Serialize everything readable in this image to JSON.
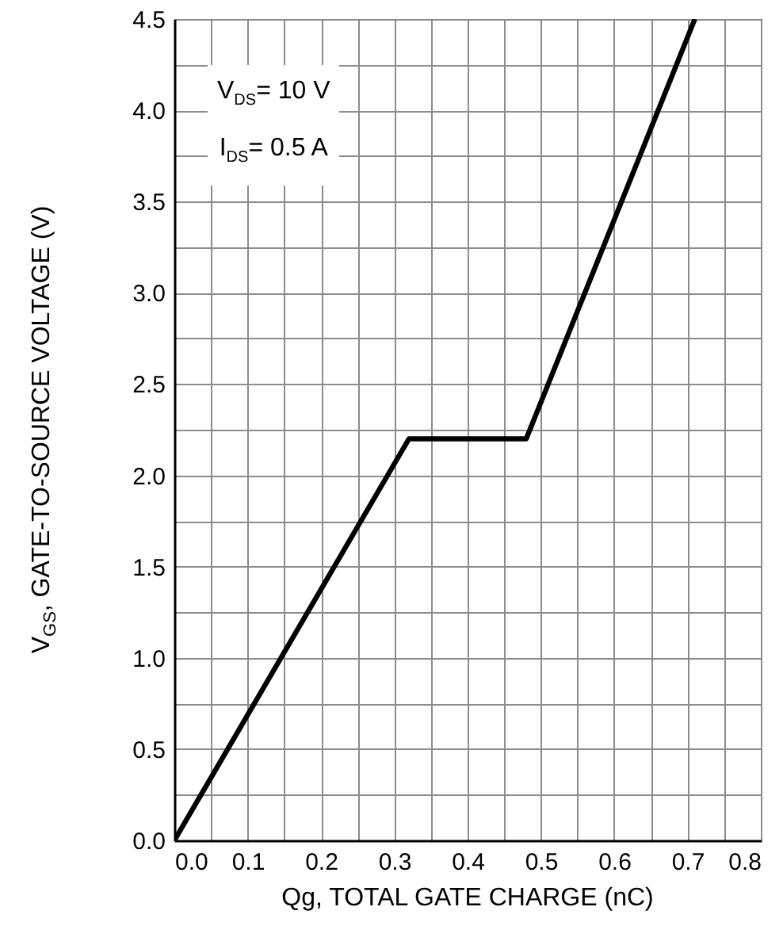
{
  "chart_data": {
    "type": "line",
    "xlabel": "Qg, TOTAL GATE CHARGE (nC)",
    "ylabel": "V$_{GS}$, GATE-TO-SOURCE VOLTAGE (V)",
    "annotations": [
      "V$_{DS}$= 10 V",
      "I$_{DS}$= 0.5 A"
    ],
    "x": [
      0,
      0.32,
      0.48,
      0.71
    ],
    "series": [
      {
        "color": "#000000",
        "values": [
          0,
          2.2,
          2.2,
          4.5
        ]
      }
    ],
    "xlim": [
      0,
      0.8
    ],
    "xticks": [
      {
        "value": 0,
        "label": "0.0"
      },
      {
        "value": 0.05,
        "label": null
      },
      {
        "value": 0.1,
        "label": "0.1"
      },
      {
        "value": 0.15,
        "label": null
      },
      {
        "value": 0.2,
        "label": "0.2"
      },
      {
        "value": 0.25,
        "label": null
      },
      {
        "value": 0.3,
        "label": "0.3"
      },
      {
        "value": 0.35,
        "label": null
      },
      {
        "value": 0.4,
        "label": "0.4"
      },
      {
        "value": 0.45,
        "label": null
      },
      {
        "value": 0.5,
        "label": "0.5"
      },
      {
        "value": 0.55,
        "label": null
      },
      {
        "value": 0.6,
        "label": "0.6"
      },
      {
        "value": 0.65,
        "label": null
      },
      {
        "value": 0.7,
        "label": "0.7"
      },
      {
        "value": 0.75,
        "label": null
      },
      {
        "value": 0.8,
        "label": "0.8"
      }
    ],
    "ylim": [
      0,
      4.5
    ],
    "yticks": [
      {
        "value": 0,
        "label": "0.0"
      },
      {
        "value": 0.25,
        "label": null
      },
      {
        "value": 0.5,
        "label": "0.5"
      },
      {
        "value": 0.75,
        "label": null
      },
      {
        "value": 1,
        "label": "1.0"
      },
      {
        "value": 1.25,
        "label": null
      },
      {
        "value": 1.5,
        "label": "1.5"
      },
      {
        "value": 1.75,
        "label": null
      },
      {
        "value": 2,
        "label": "2.0"
      },
      {
        "value": 2.25,
        "label": null
      },
      {
        "value": 2.5,
        "label": "2.5"
      },
      {
        "value": 2.75,
        "label": null
      },
      {
        "value": 3,
        "label": "3.0"
      },
      {
        "value": 3.25,
        "label": null
      },
      {
        "value": 3.5,
        "label": "3.5"
      },
      {
        "value": 3.75,
        "label": null
      },
      {
        "value": 4,
        "label": "4.0"
      },
      {
        "value": 4.25,
        "label": null
      },
      {
        "value": 4.5,
        "label": "4.5"
      }
    ],
    "grid": true,
    "marker": "none",
    "line_style": "solid"
  }
}
